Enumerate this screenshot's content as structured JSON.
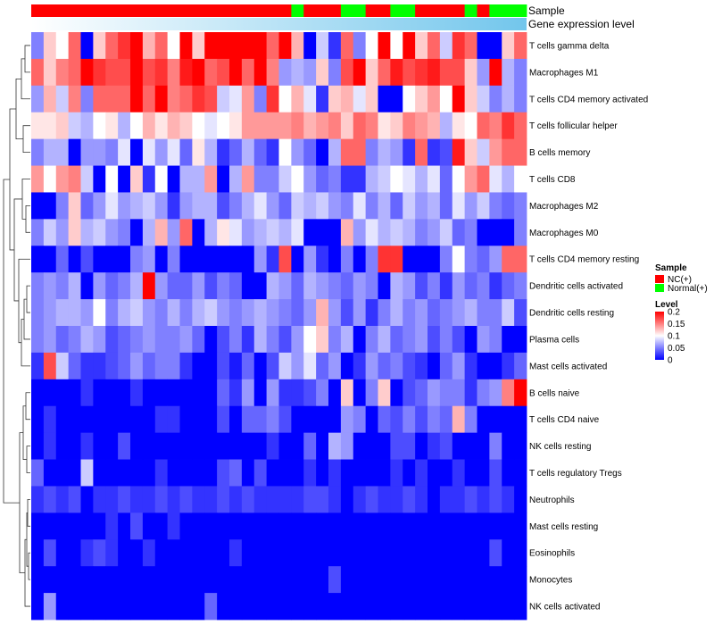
{
  "chart_data": {
    "type": "heatmap",
    "annotations": {
      "sample_label": "Sample",
      "gene_label": "Gene expression level",
      "sample_groups": [
        "NC(+)",
        "NC(+)",
        "NC(+)",
        "NC(+)",
        "NC(+)",
        "NC(+)",
        "NC(+)",
        "NC(+)",
        "NC(+)",
        "NC(+)",
        "NC(+)",
        "NC(+)",
        "NC(+)",
        "NC(+)",
        "NC(+)",
        "NC(+)",
        "NC(+)",
        "NC(+)",
        "NC(+)",
        "NC(+)",
        "NC(+)",
        "Normal(+)",
        "NC(+)",
        "NC(+)",
        "NC(+)",
        "Normal(+)",
        "Normal(+)",
        "NC(+)",
        "NC(+)",
        "Normal(+)",
        "Normal(+)",
        "NC(+)",
        "NC(+)",
        "NC(+)",
        "NC(+)",
        "Normal(+)",
        "NC(+)",
        "Normal(+)",
        "Normal(+)",
        "Normal(+)"
      ]
    },
    "rows": [
      {
        "name": "T cells gamma delta",
        "values": [
          0.05,
          0.12,
          0.1,
          0.16,
          0.0,
          0.12,
          0.16,
          0.18,
          0.2,
          0.13,
          0.16,
          0.1,
          0.2,
          0.12,
          0.2,
          0.2,
          0.2,
          0.2,
          0.2,
          0.16,
          0.2,
          0.13,
          0.0,
          0.08,
          0.02,
          0.16,
          0.05,
          0.1,
          0.2,
          0.1,
          0.2,
          0.12,
          0.16,
          0.08,
          0.18,
          0.16,
          0.0,
          0.0,
          0.12,
          0.16
        ]
      },
      {
        "name": "Macrophages M1",
        "values": [
          0.16,
          0.12,
          0.15,
          0.16,
          0.2,
          0.18,
          0.17,
          0.17,
          0.2,
          0.17,
          0.18,
          0.15,
          0.19,
          0.2,
          0.16,
          0.17,
          0.2,
          0.16,
          0.2,
          0.15,
          0.06,
          0.07,
          0.06,
          0.12,
          0.05,
          0.17,
          0.2,
          0.12,
          0.16,
          0.19,
          0.17,
          0.18,
          0.19,
          0.17,
          0.17,
          0.12,
          0.06,
          0.2,
          0.07,
          0.05
        ]
      },
      {
        "name": "T cells CD4 memory activated",
        "values": [
          0.06,
          0.13,
          0.08,
          0.15,
          0.05,
          0.16,
          0.16,
          0.16,
          0.2,
          0.16,
          0.2,
          0.15,
          0.16,
          0.18,
          0.17,
          0.08,
          0.09,
          0.14,
          0.05,
          0.18,
          0.1,
          0.13,
          0.09,
          0.02,
          0.12,
          0.13,
          0.09,
          0.12,
          0.0,
          0.0,
          0.1,
          0.12,
          0.14,
          0.1,
          0.2,
          0.12,
          0.08,
          0.05,
          0.07,
          0.05
        ]
      },
      {
        "name": "T cells follicular helper",
        "values": [
          0.11,
          0.11,
          0.12,
          0.08,
          0.07,
          0.1,
          0.11,
          0.07,
          0.1,
          0.13,
          0.11,
          0.13,
          0.12,
          0.1,
          0.09,
          0.1,
          0.11,
          0.14,
          0.14,
          0.14,
          0.14,
          0.15,
          0.13,
          0.14,
          0.15,
          0.12,
          0.16,
          0.15,
          0.11,
          0.12,
          0.15,
          0.14,
          0.13,
          0.07,
          0.11,
          0.1,
          0.16,
          0.15,
          0.18,
          0.16
        ]
      },
      {
        "name": "B cells memory",
        "values": [
          0.05,
          0.07,
          0.07,
          0.0,
          0.06,
          0.06,
          0.05,
          0.09,
          0.0,
          0.09,
          0.06,
          0.09,
          0.04,
          0.11,
          0.07,
          0.02,
          0.04,
          0.07,
          0.04,
          0.02,
          0.1,
          0.06,
          0.04,
          0.0,
          0.07,
          0.16,
          0.16,
          0.05,
          0.07,
          0.06,
          0.02,
          0.16,
          0.02,
          0.03,
          0.19,
          0.12,
          0.08,
          0.14,
          0.16,
          0.16
        ]
      },
      {
        "name": "T cells CD8",
        "values": [
          0.14,
          0.1,
          0.14,
          0.15,
          0.08,
          0.0,
          0.1,
          0.0,
          0.12,
          0.02,
          0.1,
          0.0,
          0.07,
          0.07,
          0.14,
          0.0,
          0.07,
          0.14,
          0.05,
          0.05,
          0.08,
          0.1,
          0.06,
          0.04,
          0.05,
          0.02,
          0.02,
          0.07,
          0.08,
          0.1,
          0.09,
          0.07,
          0.09,
          0.04,
          0.1,
          0.14,
          0.16,
          0.09,
          0.07,
          0.1
        ]
      },
      {
        "name": "Macrophages M2",
        "values": [
          0.0,
          0.0,
          0.05,
          0.12,
          0.04,
          0.06,
          0.09,
          0.06,
          0.07,
          0.08,
          0.06,
          0.02,
          0.06,
          0.07,
          0.07,
          0.03,
          0.05,
          0.07,
          0.09,
          0.06,
          0.04,
          0.08,
          0.07,
          0.08,
          0.06,
          0.05,
          0.09,
          0.05,
          0.07,
          0.04,
          0.08,
          0.06,
          0.07,
          0.04,
          0.09,
          0.06,
          0.08,
          0.05,
          0.04,
          0.05
        ]
      },
      {
        "name": "Macrophages M0",
        "values": [
          0.05,
          0.08,
          0.06,
          0.12,
          0.07,
          0.08,
          0.06,
          0.05,
          0.0,
          0.07,
          0.13,
          0.06,
          0.16,
          0.0,
          0.07,
          0.11,
          0.09,
          0.06,
          0.07,
          0.08,
          0.07,
          0.09,
          0.0,
          0.0,
          0.0,
          0.13,
          0.06,
          0.09,
          0.07,
          0.08,
          0.07,
          0.05,
          0.06,
          0.08,
          0.04,
          0.05,
          0.0,
          0.0,
          0.0,
          0.05
        ]
      },
      {
        "name": "T cells CD4 memory resting",
        "values": [
          0.0,
          0.0,
          0.04,
          0.0,
          0.03,
          0.0,
          0.0,
          0.0,
          0.05,
          0.06,
          0.0,
          0.05,
          0.0,
          0.0,
          0.0,
          0.0,
          0.0,
          0.0,
          0.06,
          0.02,
          0.17,
          0.0,
          0.06,
          0.02,
          0.0,
          0.05,
          0.0,
          0.05,
          0.18,
          0.18,
          0.0,
          0.0,
          0.0,
          0.05,
          0.1,
          0.05,
          0.04,
          0.06,
          0.16,
          0.16
        ]
      },
      {
        "name": "Dendritic cells activated",
        "values": [
          0.05,
          0.06,
          0.05,
          0.07,
          0.0,
          0.06,
          0.04,
          0.05,
          0.07,
          0.2,
          0.06,
          0.04,
          0.04,
          0.06,
          0.03,
          0.05,
          0.04,
          0.0,
          0.0,
          0.07,
          0.06,
          0.04,
          0.07,
          0.06,
          0.05,
          0.04,
          0.06,
          0.05,
          0.0,
          0.07,
          0.06,
          0.03,
          0.05,
          0.02,
          0.06,
          0.04,
          0.05,
          0.02,
          0.04,
          0.05
        ]
      },
      {
        "name": "Dendritic cells resting",
        "values": [
          0.05,
          0.06,
          0.07,
          0.07,
          0.06,
          0.1,
          0.05,
          0.07,
          0.08,
          0.06,
          0.05,
          0.07,
          0.05,
          0.07,
          0.08,
          0.06,
          0.05,
          0.06,
          0.07,
          0.06,
          0.05,
          0.04,
          0.06,
          0.13,
          0.06,
          0.03,
          0.06,
          0.02,
          0.05,
          0.07,
          0.05,
          0.06,
          0.04,
          0.05,
          0.06,
          0.07,
          0.05,
          0.05,
          0.08,
          0.03
        ]
      },
      {
        "name": "Plasma cells",
        "values": [
          0.05,
          0.06,
          0.04,
          0.05,
          0.07,
          0.06,
          0.03,
          0.04,
          0.05,
          0.06,
          0.05,
          0.05,
          0.06,
          0.04,
          0.0,
          0.03,
          0.05,
          0.02,
          0.07,
          0.05,
          0.03,
          0.06,
          0.1,
          0.12,
          0.05,
          0.07,
          0.0,
          0.05,
          0.07,
          0.04,
          0.05,
          0.06,
          0.03,
          0.05,
          0.03,
          0.0,
          0.06,
          0.05,
          0.0,
          0.0
        ]
      },
      {
        "name": "Mast cells activated",
        "values": [
          0.02,
          0.17,
          0.08,
          0.04,
          0.02,
          0.02,
          0.03,
          0.04,
          0.06,
          0.04,
          0.05,
          0.05,
          0.02,
          0.0,
          0.0,
          0.03,
          0.01,
          0.04,
          0.0,
          0.03,
          0.08,
          0.06,
          0.09,
          0.04,
          0.06,
          0.0,
          0.02,
          0.06,
          0.04,
          0.05,
          0.03,
          0.02,
          0.0,
          0.04,
          0.06,
          0.02,
          0.0,
          0.0,
          0.02,
          0.04
        ]
      },
      {
        "name": "B cells naive",
        "values": [
          0.0,
          0.0,
          0.0,
          0.0,
          0.02,
          0.0,
          0.0,
          0.0,
          0.02,
          0.0,
          0.0,
          0.0,
          0.0,
          0.0,
          0.0,
          0.04,
          0.02,
          0.06,
          0.0,
          0.06,
          0.02,
          0.02,
          0.03,
          0.05,
          0.0,
          0.12,
          0.0,
          0.05,
          0.12,
          0.0,
          0.03,
          0.04,
          0.06,
          0.05,
          0.05,
          0.02,
          0.05,
          0.06,
          0.15,
          0.2
        ]
      },
      {
        "name": "T cells CD4 naive",
        "values": [
          0.0,
          0.02,
          0.0,
          0.0,
          0.0,
          0.0,
          0.0,
          0.0,
          0.0,
          0.0,
          0.02,
          0.02,
          0.0,
          0.0,
          0.0,
          0.03,
          0.0,
          0.04,
          0.04,
          0.05,
          0.03,
          0.0,
          0.0,
          0.0,
          0.0,
          0.06,
          0.05,
          0.0,
          0.04,
          0.03,
          0.05,
          0.03,
          0.05,
          0.04,
          0.13,
          0.05,
          0.0,
          0.0,
          0.0,
          0.0
        ]
      },
      {
        "name": "NK cells resting",
        "values": [
          0.0,
          0.02,
          0.0,
          0.0,
          0.02,
          0.0,
          0.0,
          0.03,
          0.0,
          0.0,
          0.0,
          0.0,
          0.0,
          0.0,
          0.0,
          0.0,
          0.0,
          0.0,
          0.0,
          0.02,
          0.0,
          0.0,
          0.04,
          0.0,
          0.07,
          0.06,
          0.0,
          0.0,
          0.0,
          0.03,
          0.03,
          0.0,
          0.02,
          0.03,
          0.0,
          0.0,
          0.0,
          0.05,
          0.0,
          0.0
        ]
      },
      {
        "name": "T cells regulatory  Tregs",
        "values": [
          0.04,
          0.0,
          0.0,
          0.0,
          0.08,
          0.0,
          0.0,
          0.0,
          0.0,
          0.0,
          0.02,
          0.0,
          0.0,
          0.0,
          0.0,
          0.03,
          0.04,
          0.0,
          0.03,
          0.0,
          0.0,
          0.0,
          0.02,
          0.0,
          0.02,
          0.0,
          0.0,
          0.0,
          0.0,
          0.02,
          0.0,
          0.02,
          0.0,
          0.0,
          0.02,
          0.0,
          0.0,
          0.03,
          0.0,
          0.0
        ]
      },
      {
        "name": "Neutrophils",
        "values": [
          0.02,
          0.03,
          0.02,
          0.03,
          0.0,
          0.02,
          0.02,
          0.03,
          0.02,
          0.02,
          0.03,
          0.02,
          0.03,
          0.02,
          0.02,
          0.03,
          0.02,
          0.03,
          0.02,
          0.02,
          0.02,
          0.02,
          0.03,
          0.03,
          0.02,
          0.0,
          0.02,
          0.03,
          0.02,
          0.02,
          0.03,
          0.02,
          0.0,
          0.02,
          0.02,
          0.03,
          0.02,
          0.03,
          0.02,
          0.0
        ]
      },
      {
        "name": "Mast cells resting",
        "values": [
          0.0,
          0.0,
          0.0,
          0.0,
          0.0,
          0.0,
          0.02,
          0.0,
          0.03,
          0.0,
          0.0,
          0.02,
          0.0,
          0.0,
          0.0,
          0.0,
          0.0,
          0.0,
          0.0,
          0.0,
          0.0,
          0.0,
          0.0,
          0.0,
          0.0,
          0.0,
          0.0,
          0.0,
          0.0,
          0.0,
          0.0,
          0.0,
          0.0,
          0.0,
          0.0,
          0.0,
          0.0,
          0.0,
          0.0,
          0.0
        ]
      },
      {
        "name": "Eosinophils",
        "values": [
          0.0,
          0.03,
          0.0,
          0.0,
          0.02,
          0.03,
          0.02,
          0.0,
          0.0,
          0.02,
          0.0,
          0.0,
          0.0,
          0.0,
          0.0,
          0.0,
          0.02,
          0.0,
          0.0,
          0.0,
          0.0,
          0.0,
          0.0,
          0.0,
          0.0,
          0.0,
          0.0,
          0.0,
          0.0,
          0.0,
          0.0,
          0.0,
          0.0,
          0.0,
          0.0,
          0.0,
          0.0,
          0.03,
          0.0,
          0.0
        ]
      },
      {
        "name": "Monocytes",
        "values": [
          0.0,
          0.0,
          0.0,
          0.0,
          0.0,
          0.0,
          0.0,
          0.0,
          0.0,
          0.0,
          0.0,
          0.0,
          0.0,
          0.0,
          0.0,
          0.0,
          0.0,
          0.0,
          0.0,
          0.0,
          0.0,
          0.0,
          0.0,
          0.0,
          0.03,
          0.0,
          0.0,
          0.0,
          0.0,
          0.0,
          0.0,
          0.0,
          0.0,
          0.0,
          0.0,
          0.0,
          0.0,
          0.0,
          0.0,
          0.0
        ]
      },
      {
        "name": "NK cells activated",
        "values": [
          0.0,
          0.06,
          0.0,
          0.0,
          0.0,
          0.0,
          0.0,
          0.0,
          0.0,
          0.0,
          0.0,
          0.0,
          0.0,
          0.0,
          0.04,
          0.0,
          0.0,
          0.0,
          0.0,
          0.0,
          0.0,
          0.0,
          0.0,
          0.0,
          0.0,
          0.0,
          0.0,
          0.0,
          0.0,
          0.0,
          0.0,
          0.0,
          0.0,
          0.0,
          0.0,
          0.0,
          0.0,
          0.0,
          0.0,
          0.0
        ]
      }
    ],
    "color_scale": {
      "title": "Level",
      "min": 0,
      "max": 0.2,
      "ticks": [
        "0.2",
        "0.15",
        "0.1",
        "0.05",
        "0"
      ],
      "colors": [
        "#0000ff",
        "#ffffff",
        "#ff0000"
      ]
    },
    "legend": {
      "title": "Sample",
      "entries": [
        {
          "label": "NC(+)",
          "color": "#ff0000"
        },
        {
          "label": "Normal(+)",
          "color": "#00ff00"
        }
      ],
      "position": "right"
    },
    "gene_bar_color": "#72c6ec"
  }
}
